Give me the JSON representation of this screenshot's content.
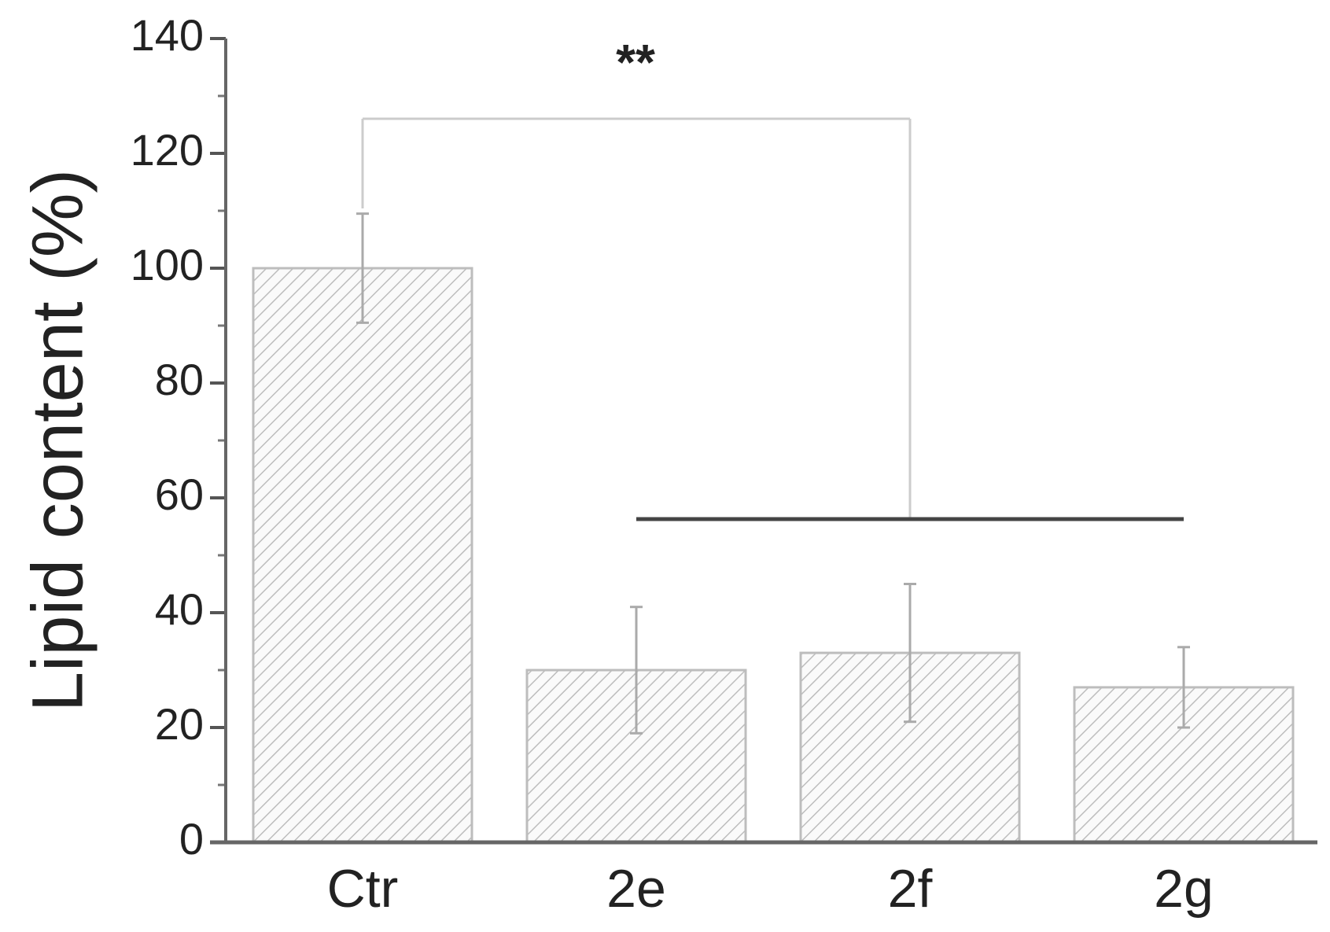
{
  "chart_data": {
    "type": "bar",
    "y_label": "Lipid content (%)",
    "annotation": "**",
    "categories": [
      "Ctr",
      "2e",
      "2f",
      "2g"
    ],
    "values": [
      100,
      30,
      33,
      27
    ],
    "errors": [
      9.5,
      11,
      12,
      7
    ],
    "color": "#bdbdbd",
    "ylim": [
      0,
      140
    ],
    "yticks": [
      0,
      20,
      40,
      60,
      80,
      100,
      120,
      140
    ]
  }
}
